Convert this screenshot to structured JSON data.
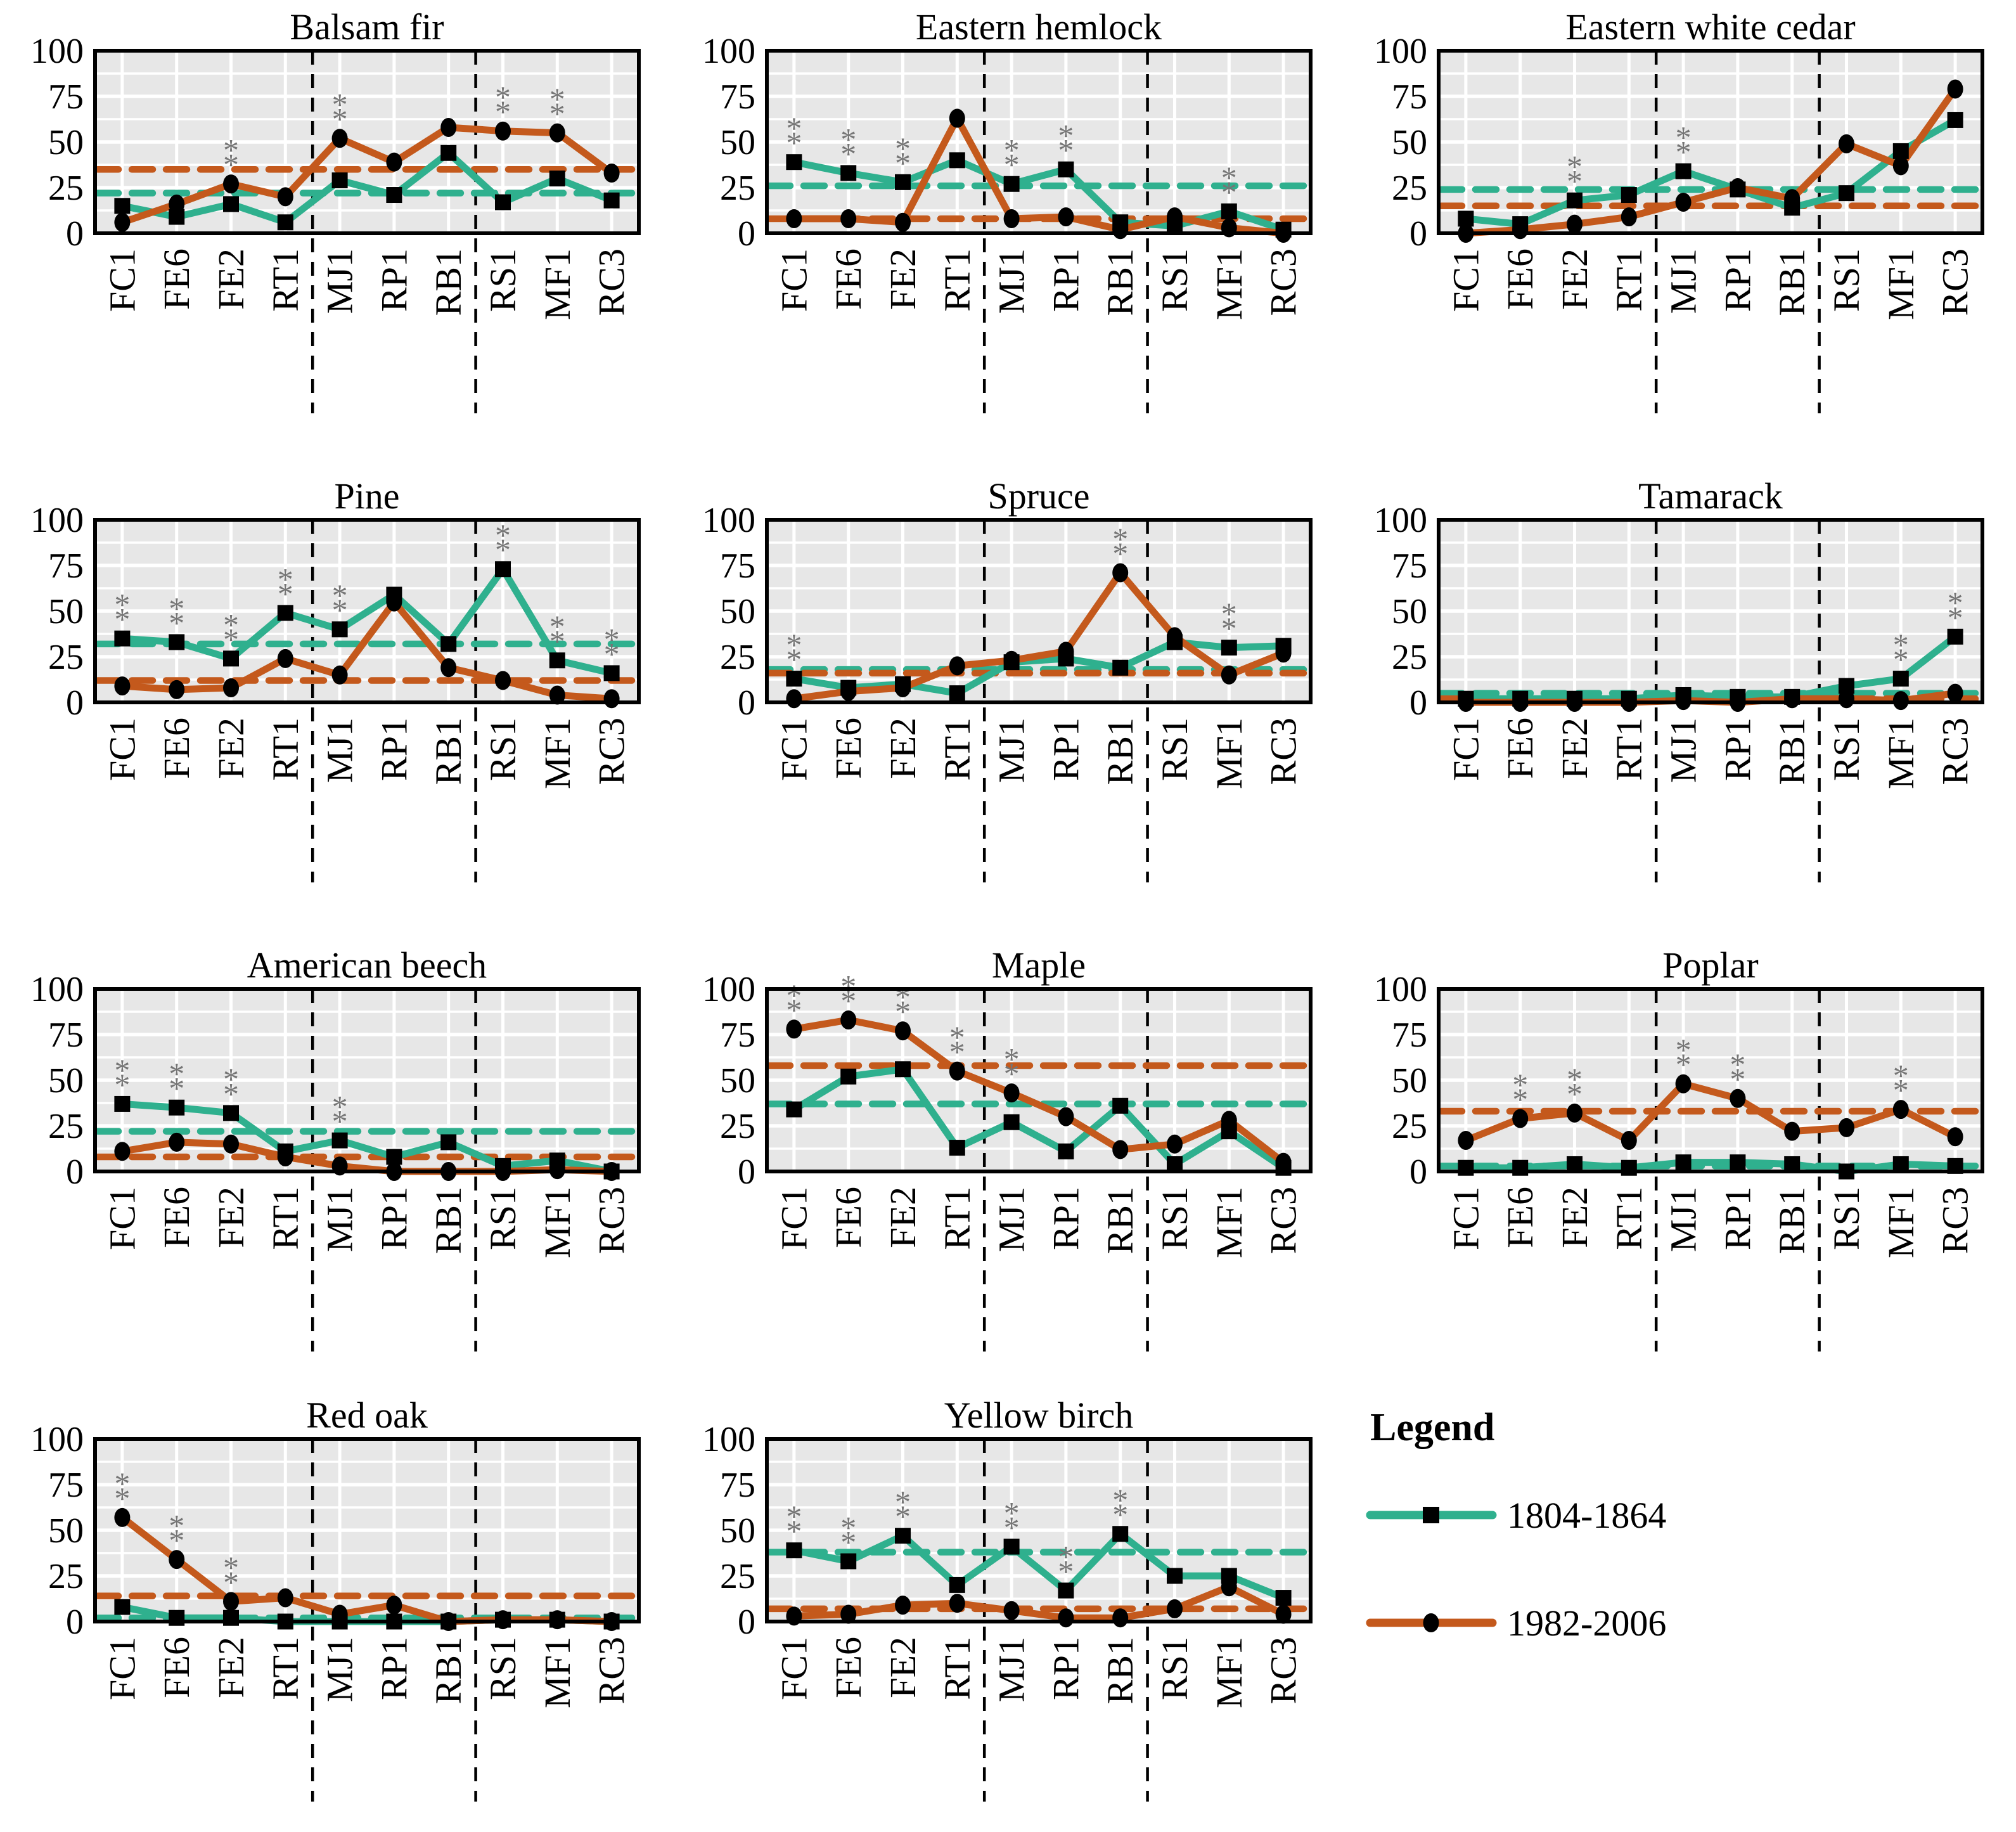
{
  "figure": {
    "background": "#ffffff",
    "plot_bg": "#e7e7e7",
    "grid_color": "#ffffff",
    "axis_color": "#000000",
    "sig_color": "#757575",
    "sig_marker": "**",
    "series_colors": {
      "s1804": "#2fb08e",
      "s1982": "#c4591c"
    },
    "marker_color": "#000000",
    "axis_ticks": [
      100,
      75,
      50,
      25,
      0
    ],
    "categories": [
      "FC1",
      "FE6",
      "FE2",
      "RT1",
      "MJ1",
      "RP1",
      "RB1",
      "RS1",
      "MF1",
      "RC3"
    ],
    "group_separators_after": [
      4,
      7
    ],
    "legend": {
      "title": "Legend",
      "entries": [
        {
          "label": "1804-1864",
          "series": "s1804",
          "marker": "square"
        },
        {
          "label": "1982-2006",
          "series": "s1982",
          "marker": "circle"
        }
      ]
    }
  },
  "chart_data": [
    {
      "type": "line",
      "title": "Balsam fir",
      "categories": [
        "FC1",
        "FE6",
        "FE2",
        "RT1",
        "MJ1",
        "RP1",
        "RB1",
        "RS1",
        "MF1",
        "RC3"
      ],
      "series": [
        {
          "name": "1804-1864",
          "values": [
            15,
            9,
            16,
            6,
            29,
            21,
            44,
            17,
            30,
            18
          ]
        },
        {
          "name": "1982-2006",
          "values": [
            6,
            16,
            27,
            20,
            52,
            39,
            58,
            56,
            55,
            33
          ]
        }
      ],
      "mean_lines": {
        "1804-1864": 22,
        "1982-2006": 35
      },
      "significant_sites": [
        "FE2",
        "MJ1",
        "RS1",
        "MF1"
      ],
      "ylim": [
        0,
        100
      ]
    },
    {
      "type": "line",
      "title": "Eastern hemlock",
      "categories": [
        "FC1",
        "FE6",
        "FE2",
        "RT1",
        "MJ1",
        "RP1",
        "RB1",
        "RS1",
        "MF1",
        "RC3"
      ],
      "series": [
        {
          "name": "1804-1864",
          "values": [
            39,
            33,
            28,
            40,
            27,
            35,
            6,
            4,
            12,
            2
          ]
        },
        {
          "name": "1982-2006",
          "values": [
            8,
            8,
            6,
            63,
            8,
            9,
            2,
            9,
            3,
            0
          ]
        }
      ],
      "mean_lines": {
        "1804-1864": 26,
        "1982-2006": 8
      },
      "significant_sites": [
        "FC1",
        "FE6",
        "FE2",
        "MJ1",
        "RP1",
        "MF1"
      ],
      "ylim": [
        0,
        100
      ]
    },
    {
      "type": "line",
      "title": "Eastern white cedar",
      "categories": [
        "FC1",
        "FE6",
        "FE2",
        "RT1",
        "MJ1",
        "RP1",
        "RB1",
        "RS1",
        "MF1",
        "RC3"
      ],
      "series": [
        {
          "name": "1804-1864",
          "values": [
            8,
            5,
            18,
            21,
            34,
            24,
            14,
            22,
            45,
            62
          ]
        },
        {
          "name": "1982-2006",
          "values": [
            0,
            2,
            5,
            9,
            17,
            25,
            19,
            49,
            37,
            79
          ]
        }
      ],
      "mean_lines": {
        "1804-1864": 24,
        "1982-2006": 15
      },
      "significant_sites": [
        "FE2",
        "MJ1"
      ],
      "ylim": [
        0,
        100
      ]
    },
    {
      "type": "line",
      "title": "Pine",
      "categories": [
        "FC1",
        "FE6",
        "FE2",
        "RT1",
        "MJ1",
        "RP1",
        "RB1",
        "RS1",
        "MF1",
        "RC3"
      ],
      "series": [
        {
          "name": "1804-1864",
          "values": [
            35,
            33,
            24,
            49,
            40,
            59,
            32,
            73,
            23,
            16
          ]
        },
        {
          "name": "1982-2006",
          "values": [
            9,
            7,
            8,
            24,
            15,
            55,
            19,
            12,
            4,
            2
          ]
        }
      ],
      "mean_lines": {
        "1804-1864": 32,
        "1982-2006": 12
      },
      "significant_sites": [
        "FC1",
        "FE6",
        "FE2",
        "RT1",
        "MJ1",
        "RS1",
        "MF1",
        "RC3"
      ],
      "ylim": [
        0,
        100
      ]
    },
    {
      "type": "line",
      "title": "Spruce",
      "categories": [
        "FC1",
        "FE6",
        "FE2",
        "RT1",
        "MJ1",
        "RP1",
        "RB1",
        "RS1",
        "MF1",
        "RC3"
      ],
      "series": [
        {
          "name": "1804-1864",
          "values": [
            13,
            8,
            10,
            5,
            22,
            24,
            19,
            33,
            30,
            31
          ]
        },
        {
          "name": "1982-2006",
          "values": [
            2,
            6,
            8,
            20,
            23,
            28,
            71,
            36,
            15,
            27
          ]
        }
      ],
      "mean_lines": {
        "1804-1864": 18,
        "1982-2006": 16
      },
      "significant_sites": [
        "FC1",
        "RB1",
        "MF1"
      ],
      "ylim": [
        0,
        100
      ]
    },
    {
      "type": "line",
      "title": "Tamarack",
      "categories": [
        "FC1",
        "FE6",
        "FE2",
        "RT1",
        "MJ1",
        "RP1",
        "RB1",
        "RS1",
        "MF1",
        "RC3"
      ],
      "series": [
        {
          "name": "1804-1864",
          "values": [
            2,
            2,
            2,
            2,
            4,
            3,
            3,
            9,
            13,
            36
          ]
        },
        {
          "name": "1982-2006",
          "values": [
            0,
            0,
            0,
            0,
            1,
            0,
            2,
            2,
            1,
            5
          ]
        }
      ],
      "mean_lines": {
        "1804-1864": 5,
        "1982-2006": 2
      },
      "significant_sites": [
        "MF1",
        "RC3"
      ],
      "ylim": [
        0,
        100
      ]
    },
    {
      "type": "line",
      "title": "American beech",
      "categories": [
        "FC1",
        "FE6",
        "FE2",
        "RT1",
        "MJ1",
        "RP1",
        "RB1",
        "RS1",
        "MF1",
        "RC3"
      ],
      "series": [
        {
          "name": "1804-1864",
          "values": [
            37,
            35,
            32,
            11,
            17,
            8,
            16,
            3,
            6,
            0
          ]
        },
        {
          "name": "1982-2006",
          "values": [
            11,
            16,
            15,
            8,
            3,
            0,
            0,
            0,
            1,
            0
          ]
        }
      ],
      "mean_lines": {
        "1804-1864": 22,
        "1982-2006": 8
      },
      "significant_sites": [
        "FC1",
        "FE6",
        "FE2",
        "MJ1"
      ],
      "ylim": [
        0,
        100
      ]
    },
    {
      "type": "line",
      "title": "Maple",
      "categories": [
        "FC1",
        "FE6",
        "FE2",
        "RT1",
        "MJ1",
        "RP1",
        "RB1",
        "RS1",
        "MF1",
        "RC3"
      ],
      "series": [
        {
          "name": "1804-1864",
          "values": [
            34,
            52,
            56,
            13,
            27,
            11,
            36,
            4,
            22,
            2
          ]
        },
        {
          "name": "1982-2006",
          "values": [
            78,
            83,
            77,
            55,
            43,
            30,
            12,
            15,
            28,
            5
          ]
        }
      ],
      "mean_lines": {
        "1804-1864": 37,
        "1982-2006": 58
      },
      "significant_sites": [
        "FC1",
        "FE6",
        "FE2",
        "RT1",
        "MJ1"
      ],
      "ylim": [
        0,
        100
      ]
    },
    {
      "type": "line",
      "title": "Poplar",
      "categories": [
        "FC1",
        "FE6",
        "FE2",
        "RT1",
        "MJ1",
        "RP1",
        "RB1",
        "RS1",
        "MF1",
        "RC3"
      ],
      "series": [
        {
          "name": "1804-1864",
          "values": [
            2,
            2,
            4,
            2,
            5,
            5,
            4,
            0,
            4,
            3
          ]
        },
        {
          "name": "1982-2006",
          "values": [
            17,
            29,
            32,
            17,
            48,
            40,
            22,
            24,
            34,
            19
          ]
        }
      ],
      "mean_lines": {
        "1804-1864": 3,
        "1982-2006": 33
      },
      "significant_sites": [
        "FE6",
        "FE2",
        "MJ1",
        "RP1",
        "MF1"
      ],
      "ylim": [
        0,
        100
      ]
    },
    {
      "type": "line",
      "title": "Red oak",
      "categories": [
        "FC1",
        "FE6",
        "FE2",
        "RT1",
        "MJ1",
        "RP1",
        "RB1",
        "RS1",
        "MF1",
        "RC3"
      ],
      "series": [
        {
          "name": "1804-1864",
          "values": [
            8,
            2,
            2,
            0,
            0,
            0,
            0,
            1,
            1,
            0
          ]
        },
        {
          "name": "1982-2006",
          "values": [
            57,
            34,
            11,
            13,
            4,
            9,
            0,
            1,
            1,
            0
          ]
        }
      ],
      "mean_lines": {
        "1804-1864": 2,
        "1982-2006": 14
      },
      "significant_sites": [
        "FC1",
        "FE6",
        "FE2"
      ],
      "ylim": [
        0,
        100
      ]
    },
    {
      "type": "line",
      "title": "Yellow birch",
      "categories": [
        "FC1",
        "FE6",
        "FE2",
        "RT1",
        "MJ1",
        "RP1",
        "RB1",
        "RS1",
        "MF1",
        "RC3"
      ],
      "series": [
        {
          "name": "1804-1864",
          "values": [
            39,
            33,
            47,
            20,
            41,
            17,
            48,
            25,
            25,
            13
          ]
        },
        {
          "name": "1982-2006",
          "values": [
            3,
            4,
            9,
            10,
            6,
            2,
            2,
            7,
            19,
            4
          ]
        }
      ],
      "mean_lines": {
        "1804-1864": 38,
        "1982-2006": 7
      },
      "significant_sites": [
        "FC1",
        "FE6",
        "FE2",
        "MJ1",
        "RP1",
        "RB1"
      ],
      "ylim": [
        0,
        100
      ]
    }
  ]
}
